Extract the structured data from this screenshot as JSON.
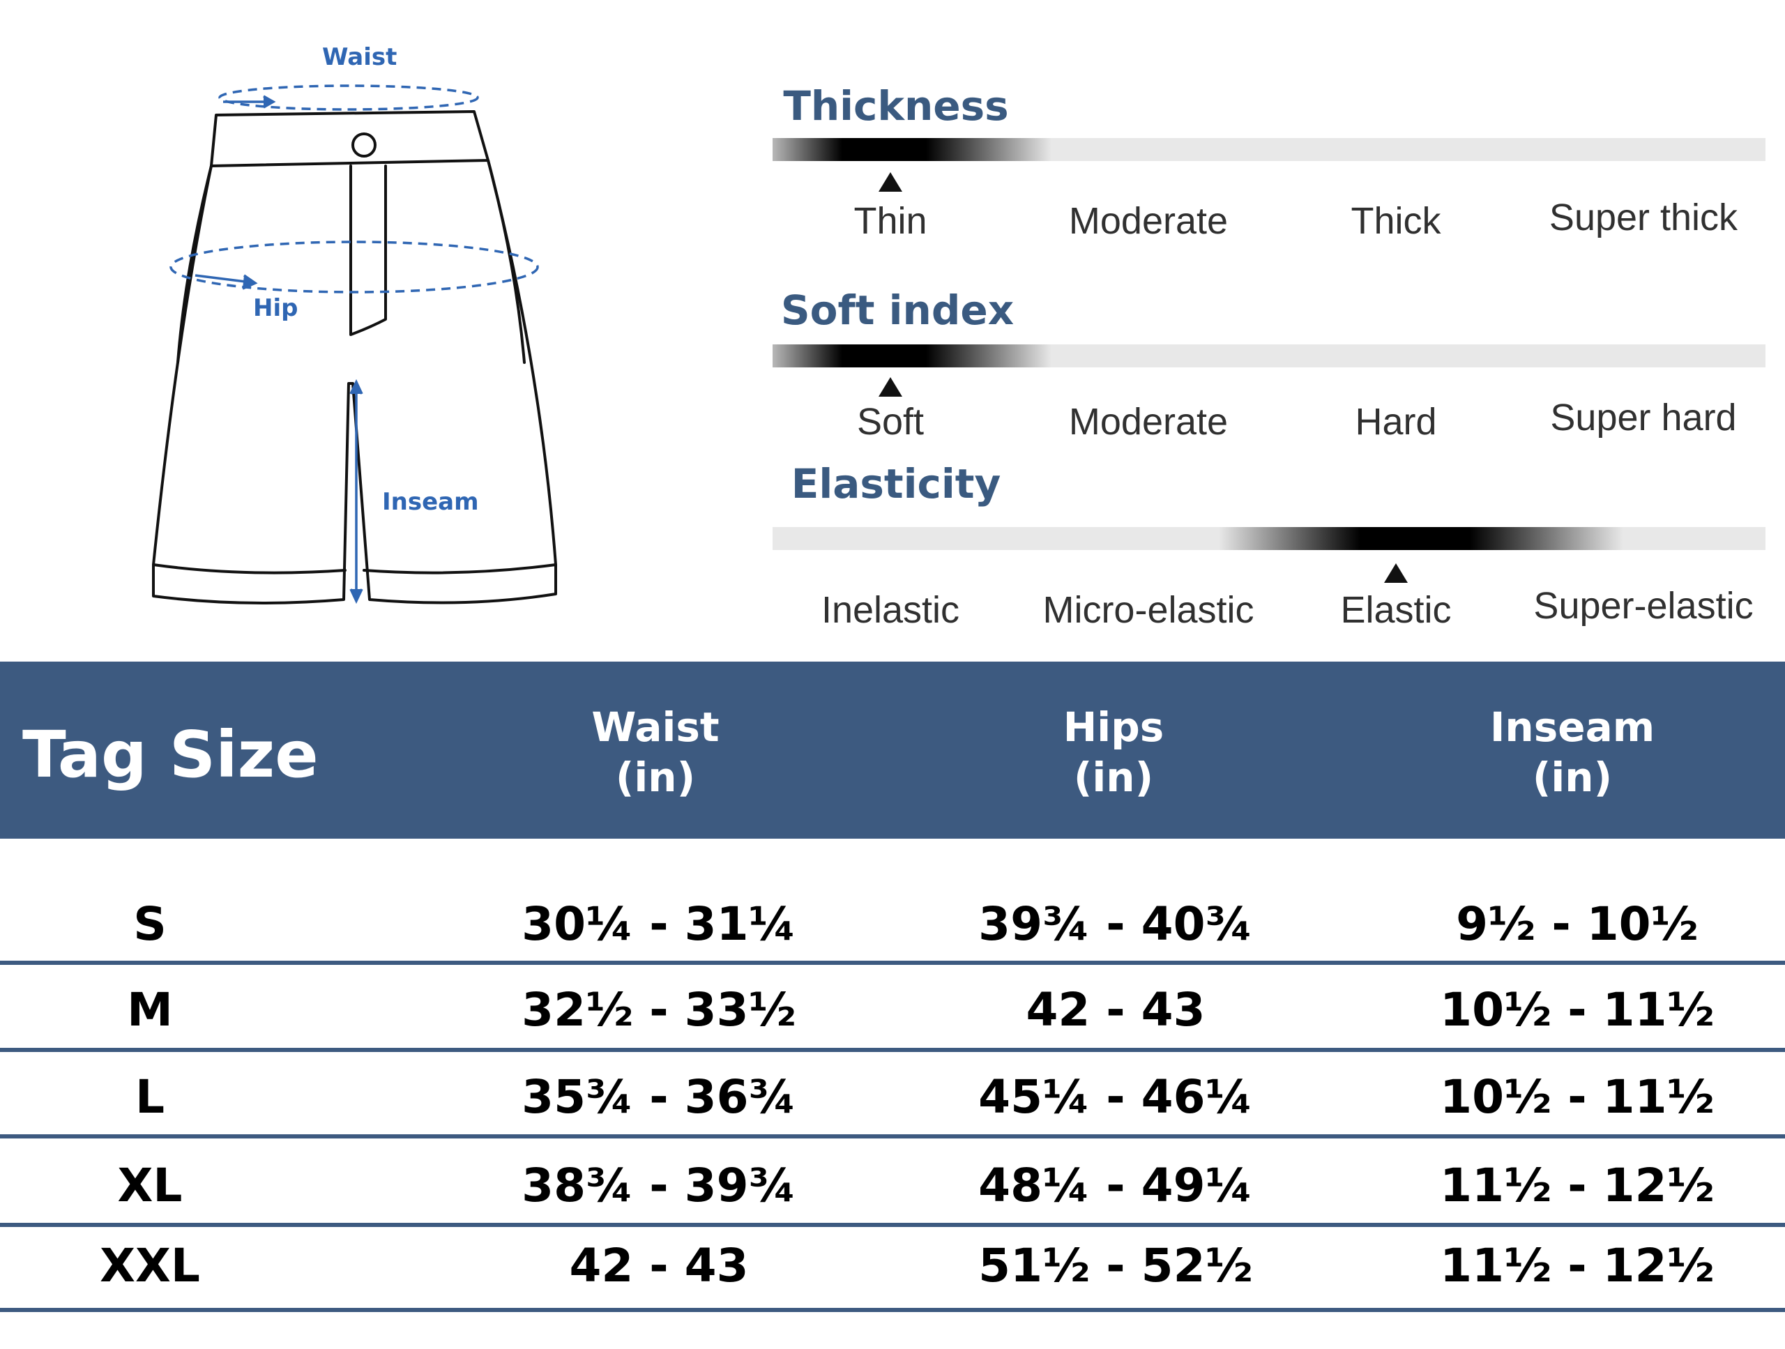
{
  "diagram": {
    "labels": {
      "waist": "Waist",
      "hip": "Hip",
      "inseam": "Inseam"
    },
    "colors": {
      "outline": "#111111",
      "measure": "#2f66b3"
    }
  },
  "scales": [
    {
      "title": "Thickness",
      "options": [
        "Thin",
        "Moderate",
        "Thick",
        "Super thick"
      ],
      "selected_index": 0
    },
    {
      "title": "Soft index",
      "options": [
        "Soft",
        "Moderate",
        "Hard",
        "Super hard"
      ],
      "selected_index": 0
    },
    {
      "title": "Elasticity",
      "options": [
        "Inelastic",
        "Micro-elastic",
        "Elastic",
        "Super-elastic"
      ],
      "selected_index": 2
    }
  ],
  "table": {
    "header": {
      "tag_size": "Tag Size",
      "columns": [
        {
          "name": "Waist",
          "unit": "(in)"
        },
        {
          "name": "Hips",
          "unit": "(in)"
        },
        {
          "name": "Inseam",
          "unit": "(in)"
        }
      ]
    },
    "rows": [
      {
        "size": "S",
        "waist": "30¼ - 31¼",
        "hips": "39¾ - 40¾",
        "inseam": "9½ - 10½"
      },
      {
        "size": "M",
        "waist": "32½ - 33½",
        "hips": "42 - 43",
        "inseam": "10½ - 11½"
      },
      {
        "size": "L",
        "waist": "35¾ - 36¾",
        "hips": "45¼ - 46¼",
        "inseam": "10½ - 11½"
      },
      {
        "size": "XL",
        "waist": "38¾ - 39¾",
        "hips": "48¼ - 49¼",
        "inseam": "11½ - 12½"
      },
      {
        "size": "XXL",
        "waist": "42 - 43",
        "hips": "51½ - 52½",
        "inseam": "11½ - 12½"
      }
    ]
  },
  "colors": {
    "header_bg": "#3d5a80",
    "title_text": "#3a5a80",
    "bar_bg": "#e8e8e8"
  }
}
